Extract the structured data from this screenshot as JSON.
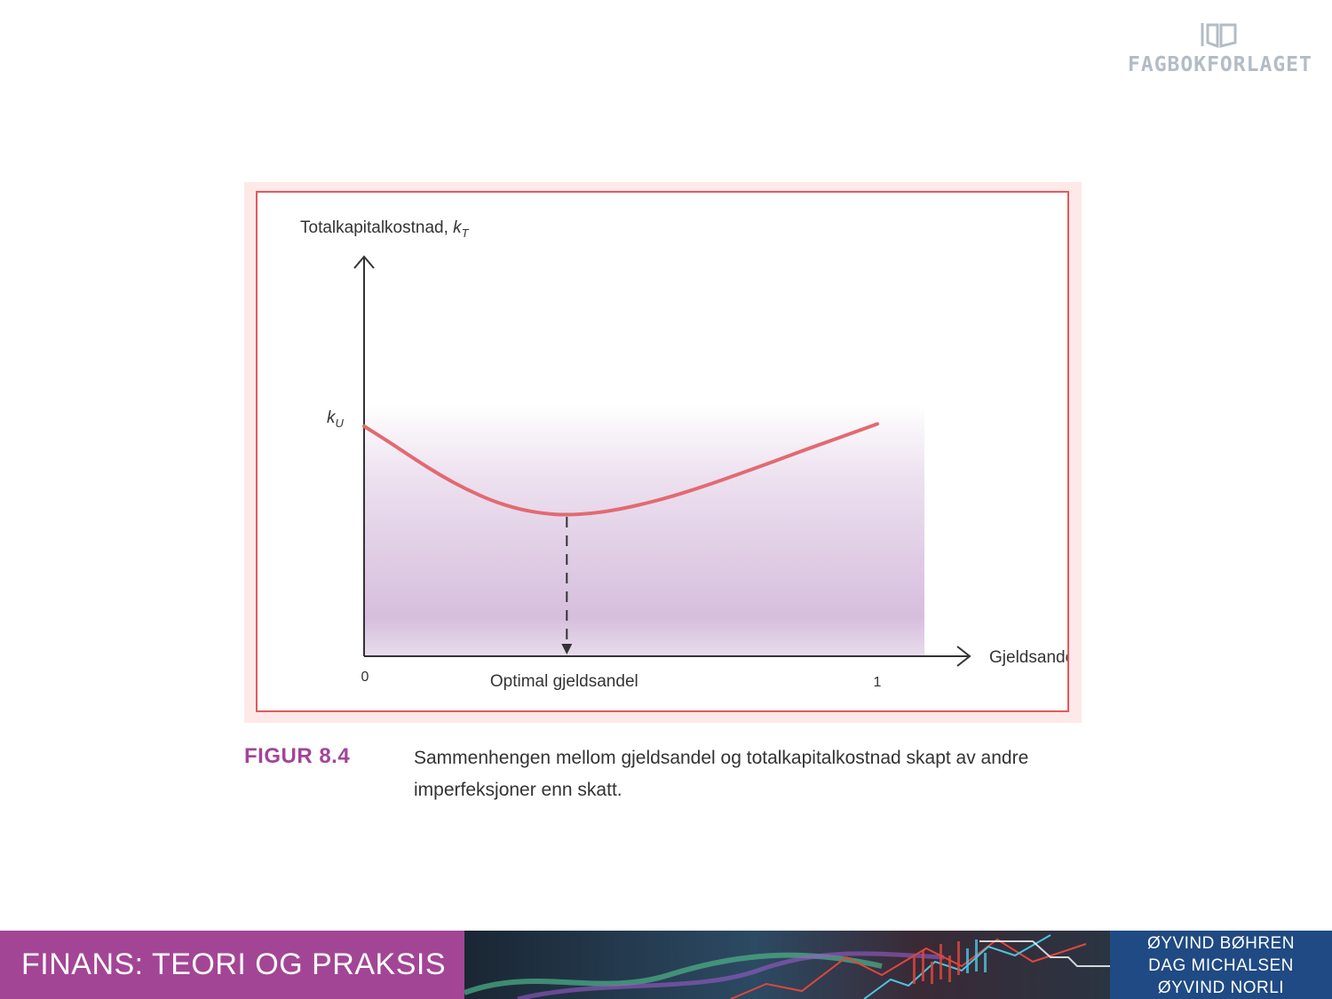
{
  "logo": {
    "name": "FAGBOKFORLAGET",
    "icon": "book-icon"
  },
  "figure": {
    "label": "FIGUR 8.4",
    "caption": "Sammenhengen mellom gjeldsandel og totalkapitalkostnad skapt av andre imperfeksjoner enn skatt."
  },
  "chart_data": {
    "type": "line",
    "ylabel": "Totalkapitalkostnad, ",
    "ylabel_symbol": "k",
    "ylabel_subscript": "T",
    "xlabel": "Gjeldsandel",
    "x_ticks": [
      {
        "value": 0,
        "label": "0"
      },
      {
        "value": 1,
        "label": "1"
      }
    ],
    "y_marker": {
      "symbol": "k",
      "subscript": "U",
      "value": 1.0
    },
    "optimum_label": "Optimal gjeldsandel",
    "optimum_x": 0.395,
    "xlim": [
      0,
      1.09
    ],
    "ylim": [
      0,
      1.0
    ],
    "grid": false,
    "series": [
      {
        "color": "#e26a70",
        "points": [
          [
            0.0,
            1.0
          ],
          [
            0.05,
            0.93
          ],
          [
            0.1,
            0.855
          ],
          [
            0.15,
            0.785
          ],
          [
            0.2,
            0.725
          ],
          [
            0.25,
            0.675
          ],
          [
            0.3,
            0.64
          ],
          [
            0.35,
            0.62
          ],
          [
            0.395,
            0.614
          ],
          [
            0.45,
            0.622
          ],
          [
            0.5,
            0.64
          ],
          [
            0.55,
            0.665
          ],
          [
            0.6,
            0.695
          ],
          [
            0.65,
            0.73
          ],
          [
            0.7,
            0.768
          ],
          [
            0.75,
            0.808
          ],
          [
            0.8,
            0.848
          ],
          [
            0.85,
            0.89
          ],
          [
            0.9,
            0.93
          ],
          [
            0.95,
            0.97
          ],
          [
            1.0,
            1.01
          ]
        ]
      }
    ],
    "shading": {
      "top_color": "#ffffff",
      "bottom_color": "#d6bedd",
      "extends_to_x": 1.09
    }
  },
  "footer": {
    "title": "FINANS: TEORI OG PRAKSIS",
    "authors": [
      "ØYVIND BØHREN",
      "DAG MICHALSEN",
      "ØYVIND NORLI"
    ]
  }
}
